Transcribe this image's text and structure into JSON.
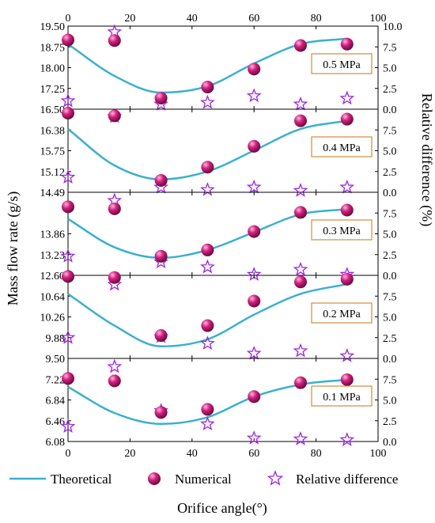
{
  "chart_data": {
    "type": "line",
    "xlabel": "Orifice angle(°)",
    "ylabel": "Mass flow rate (g/s)",
    "y2label": "Relative difference (%)",
    "xlim": [
      0,
      100
    ],
    "x_ticks": [
      "0",
      "20",
      "40",
      "60",
      "80",
      "100"
    ],
    "legend": {
      "position": "bottom",
      "theoretical": "Theoretical",
      "numerical": "Numerical",
      "reldiff": "Relative difference"
    },
    "colors": {
      "theoretical": "#3ab0d0",
      "numerical": "#c2176e",
      "reldiff": "#a020f0",
      "badge_border": "#d08c3c"
    },
    "x": [
      0,
      15,
      30,
      45,
      60,
      75,
      90
    ],
    "panels": [
      {
        "label": "0.5 MPa",
        "ylim": [
          16.5,
          19.5
        ],
        "y_ticks": [
          "19.50",
          "18.75",
          "18.00",
          "17.25",
          "16.50"
        ],
        "y2_ticks": [
          "10.0",
          "7.5",
          "5.0",
          "2.5",
          "0.0"
        ],
        "theoretical": [
          18.85,
          17.7,
          17.1,
          17.33,
          18.15,
          18.85,
          19.05
        ],
        "numerical": [
          19.0,
          18.98,
          16.9,
          17.3,
          17.95,
          18.8,
          18.85
        ],
        "reldiff": [
          1.0,
          9.3,
          0.6,
          0.8,
          1.6,
          0.6,
          1.3
        ]
      },
      {
        "label": "0.4 MPa",
        "ylim": [
          14.49,
          17.0
        ],
        "y_ticks": [
          "16.38",
          "15.75",
          "15.12",
          "14.49"
        ],
        "y2_ticks": [
          "7.5",
          "5.0",
          "2.5",
          "0.0"
        ],
        "theoretical": [
          16.4,
          15.3,
          14.88,
          15.12,
          15.75,
          16.4,
          16.65
        ],
        "numerical": [
          16.88,
          16.8,
          14.85,
          15.25,
          15.88,
          16.65,
          16.7
        ],
        "reldiff": [
          1.8,
          9.1,
          0.6,
          0.3,
          0.6,
          0.2,
          0.6
        ]
      },
      {
        "label": "0.3 MPa",
        "ylim": [
          11.97,
          14.49
        ],
        "y_ticks": [
          "13.86",
          "13.23",
          "12.60"
        ],
        "y2_ticks": [
          "7.5",
          "5.0",
          "2.5",
          "0.0"
        ],
        "theoretical": [
          13.68,
          12.82,
          12.5,
          12.74,
          13.28,
          13.82,
          13.98
        ],
        "numerical": [
          14.05,
          13.99,
          12.55,
          12.74,
          13.3,
          13.88,
          13.95
        ],
        "reldiff": [
          2.3,
          9.0,
          1.6,
          1.0,
          0.1,
          0.7,
          0.1
        ]
      },
      {
        "label": "0.2 MPa",
        "ylim": [
          9.5,
          11.02
        ],
        "y_ticks": [
          "10.64",
          "10.26",
          "9.88",
          "9.50"
        ],
        "y2_ticks": [
          "7.5",
          "5.0",
          "2.5",
          "0.0"
        ],
        "theoretical": [
          10.68,
          10.1,
          9.72,
          9.85,
          10.3,
          10.68,
          10.86
        ],
        "numerical": [
          11.0,
          10.98,
          9.92,
          10.1,
          10.55,
          10.9,
          10.95
        ],
        "reldiff": [
          2.5,
          8.9,
          2.6,
          1.8,
          0.6,
          0.9,
          0.3
        ]
      },
      {
        "label": "0.1 MPa",
        "ylim": [
          6.08,
          7.45
        ],
        "y_ticks": [
          "7.22",
          "6.84",
          "6.46",
          "6.08"
        ],
        "y2_ticks": [
          "7.5",
          "5.0",
          "2.5",
          "0.0"
        ],
        "theoretical": [
          6.98,
          6.55,
          6.37,
          6.48,
          6.82,
          7.02,
          7.1
        ],
        "numerical": [
          7.12,
          7.08,
          6.56,
          6.61,
          6.82,
          7.05,
          7.1
        ],
        "reldiff": [
          1.8,
          9.0,
          3.7,
          2.1,
          0.4,
          0.3,
          0.2
        ]
      }
    ]
  }
}
